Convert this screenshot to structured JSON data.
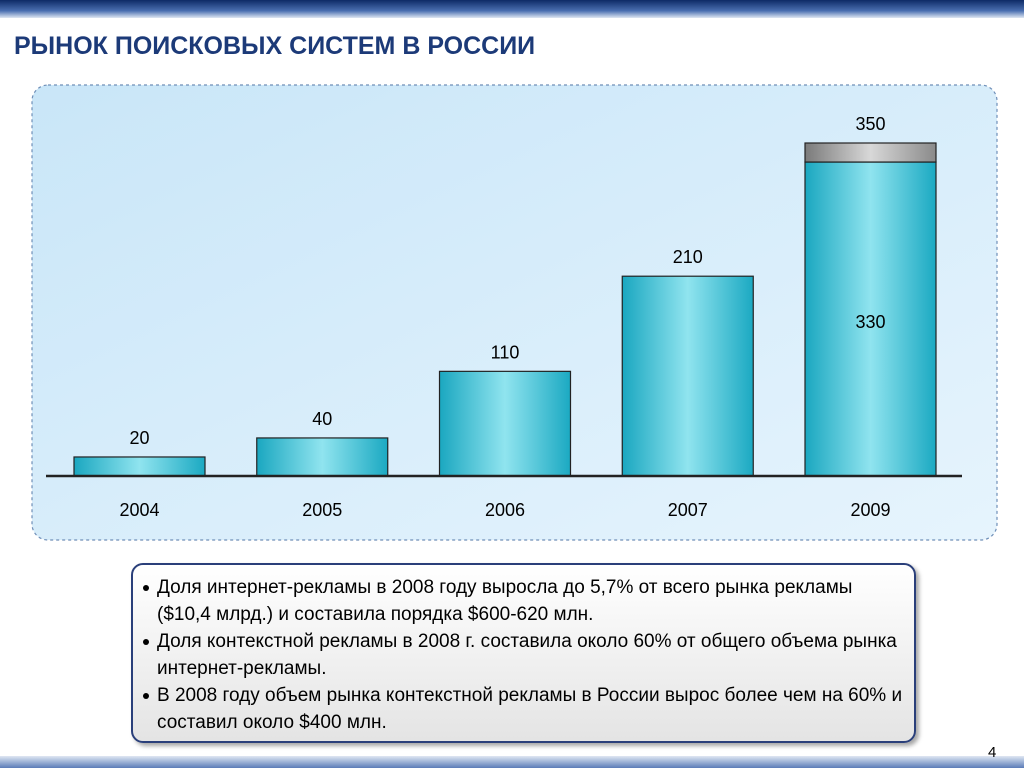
{
  "title": "РЫНОК ПОИСКОВЫХ СИСТЕМ В РОССИИ",
  "chart_data": {
    "type": "bar",
    "categories": [
      "2004",
      "2005",
      "2006",
      "2007",
      "2009"
    ],
    "series": [
      {
        "color": "#1ba9c2",
        "values": [
          20,
          40,
          110,
          210,
          330
        ]
      },
      {
        "color": "#8a8a8a",
        "values": [
          null,
          null,
          null,
          null,
          20
        ]
      }
    ],
    "totals": [
      20,
      40,
      110,
      210,
      350
    ]
  },
  "notes": [
    "Доля интернет-рекламы в 2008 году выросла до 5,7% от всего рынка рекламы ($10,4 млрд.) и составила порядка $600-620 млн.",
    "Доля контекстной рекламы в 2008 г. составила около 60% от общего объема рынка интернет-рекламы.",
    "В 2008 году объем рынка контекстной рекламы в России вырос более чем на 60% и составил около $400 млн."
  ],
  "page_number": "4"
}
